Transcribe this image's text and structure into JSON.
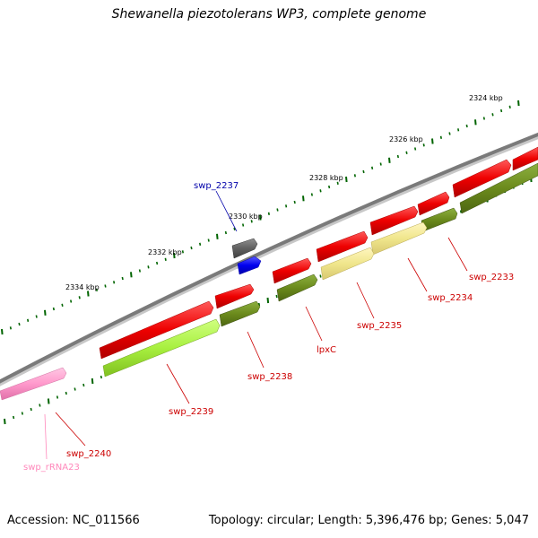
{
  "title": "Shewanella piezotolerans WP3, complete genome",
  "accession": "Accession: NC_011566",
  "topology": "Topology: circular; Length: 5,396,476 bp; Genes: 5,047",
  "ticks": [
    "2324 kbp",
    "2326 kbp",
    "2328 kbp",
    "2330 kbp",
    "2332 kbp",
    "2334 kbp"
  ],
  "labels": {
    "swp_2237": "swp_2237",
    "swp_2233": "swp_2233",
    "swp_2234": "swp_2234",
    "swp_2235": "swp_2235",
    "lpxC": "lpxC",
    "swp_2238": "swp_2238",
    "swp_2239": "swp_2239",
    "swp_2240": "swp_2240",
    "swp_rRNA23": "swp_rRNA23"
  },
  "colors": {
    "backbone": "#7a7a7a",
    "cds_red": "#ee0000",
    "cds_olive": "#6b8a1c",
    "cds_lightgreen": "#a8f040",
    "cds_khaki": "#f0e68c",
    "blue": "#0000ee",
    "gray": "#606060",
    "rrna": "#ff99cc",
    "tick": "#006400",
    "label_red": "#cc0000",
    "label_blue": "#0000aa",
    "label_pink": "#ff88bb"
  }
}
